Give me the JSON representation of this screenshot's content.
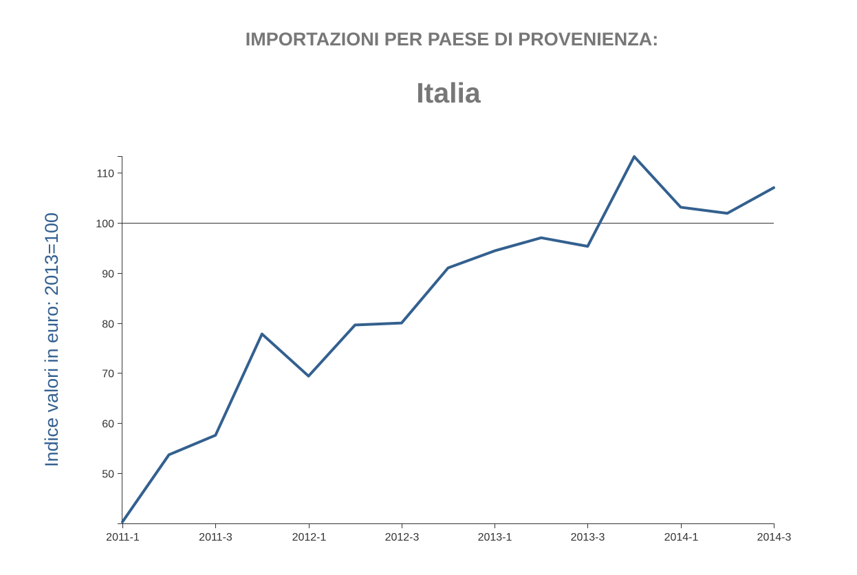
{
  "title": "IMPORTAZIONI PER PAESE DI PROVENIENZA:",
  "subtitle": "Italia",
  "chart_data": {
    "type": "line",
    "title": "IMPORTAZIONI PER PAESE DI PROVENIENZA:",
    "subtitle": "Italia",
    "xlabel": "",
    "ylabel": "Indice valori in euro: 2013=100",
    "x": [
      "2011-1",
      "2011-2",
      "2011-3",
      "2011-4",
      "2012-1",
      "2012-2",
      "2012-3",
      "2012-4",
      "2013-1",
      "2013-2",
      "2013-3",
      "2013-4",
      "2014-1",
      "2014-2",
      "2014-3"
    ],
    "x_tick_labels": [
      "2011-1",
      "2011-3",
      "2012-1",
      "2012-3",
      "2013-1",
      "2013-3",
      "2014-1",
      "2014-3"
    ],
    "series": [
      {
        "values": [
          40.3,
          53.7,
          57.6,
          77.8,
          69.4,
          79.6,
          80.0,
          91.0,
          94.4,
          97.0,
          95.3,
          113.2,
          103.1,
          101.9,
          107.0
        ],
        "color": "#33608f"
      }
    ],
    "ylim": [
      40,
      113.3
    ],
    "yticks": [
      50,
      60,
      70,
      80,
      90,
      100,
      110
    ],
    "reference_line": 100,
    "grid": false,
    "legend": "none"
  }
}
